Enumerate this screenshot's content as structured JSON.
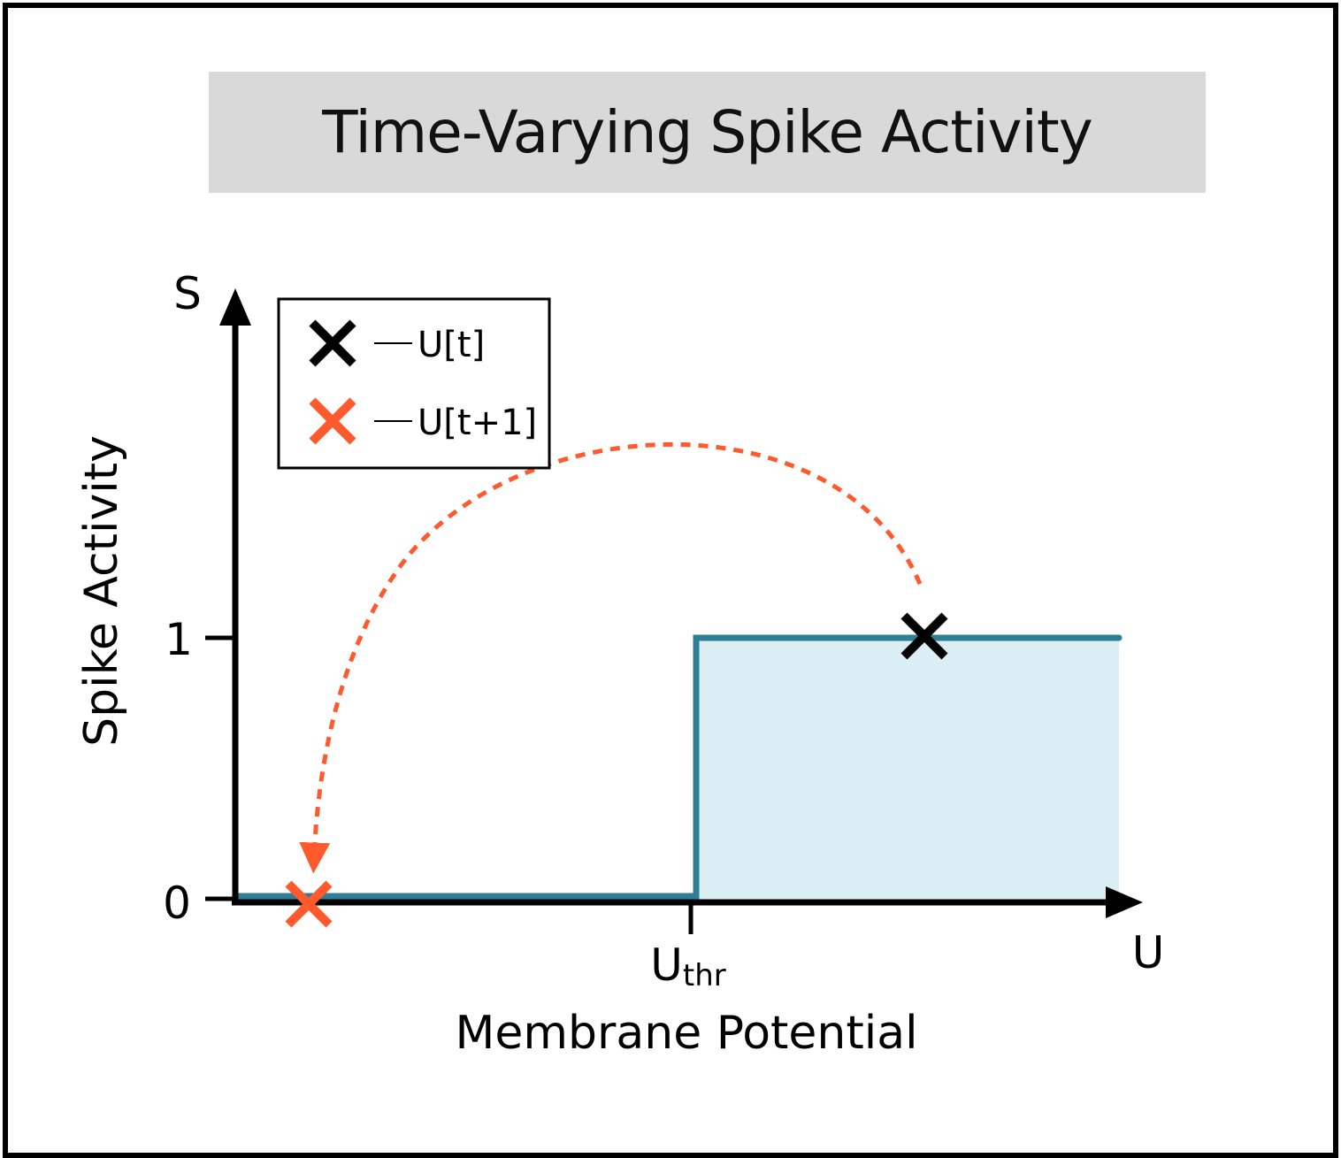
{
  "title": "Time-Varying Spike Activity",
  "axes": {
    "y_symbol": "S",
    "x_symbol": "U",
    "y_label": "Spike Activity",
    "x_label": "Membrane Potential",
    "y_tick_0": "0",
    "y_tick_1": "1",
    "threshold_main": "U",
    "threshold_sub": "thr"
  },
  "legend": {
    "items": [
      {
        "marker": "x-marker",
        "label": "U[t]",
        "color": "#000000"
      },
      {
        "marker": "x-marker",
        "label": "U[t+1]",
        "color": "#ff5a2d"
      }
    ]
  },
  "colors": {
    "step_line": "#2e7f96",
    "step_fill": "#dbeef4",
    "arrow": "#ff5a2d",
    "marker_t": "#000000",
    "marker_t1": "#ff5a2d",
    "title_bg": "#d9d9d9"
  }
}
